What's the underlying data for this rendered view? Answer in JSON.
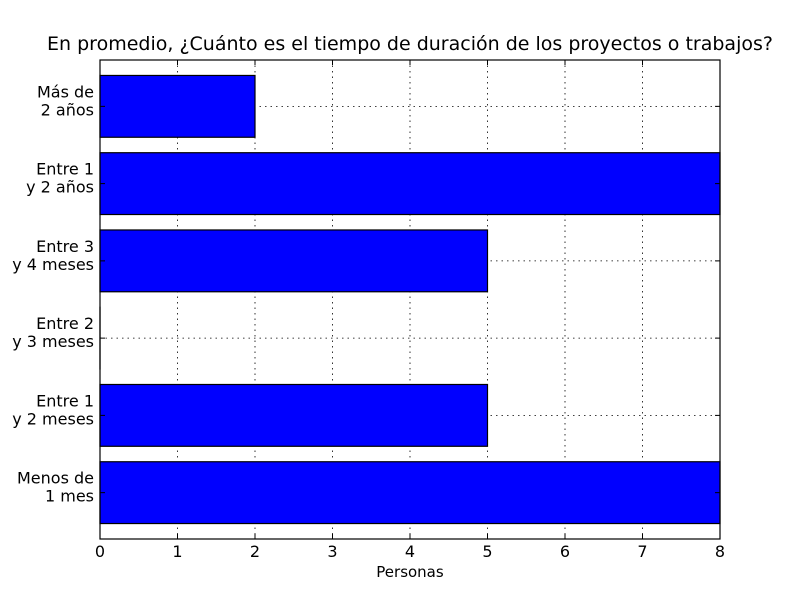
{
  "chart_data": {
    "type": "bar",
    "orientation": "horizontal",
    "title": "En promedio, ¿Cuánto es el tiempo de duración de los proyectos o trabajos?",
    "xlabel": "Personas",
    "ylabel": "",
    "xlim": [
      0,
      8
    ],
    "xticks": [
      "0",
      "1",
      "2",
      "3",
      "4",
      "5",
      "6",
      "7",
      "8"
    ],
    "grid": true,
    "bar_color": "#0000ff",
    "categories": [
      [
        "Menos de",
        "1 mes"
      ],
      [
        "Entre 1",
        "y 2 meses"
      ],
      [
        "Entre 2",
        "y 3 meses"
      ],
      [
        "Entre 3",
        "y 4 meses"
      ],
      [
        "Entre 1",
        "y 2 años"
      ],
      [
        "Más de",
        "2 años"
      ]
    ],
    "values": [
      8,
      5,
      0,
      5,
      8,
      2
    ]
  }
}
